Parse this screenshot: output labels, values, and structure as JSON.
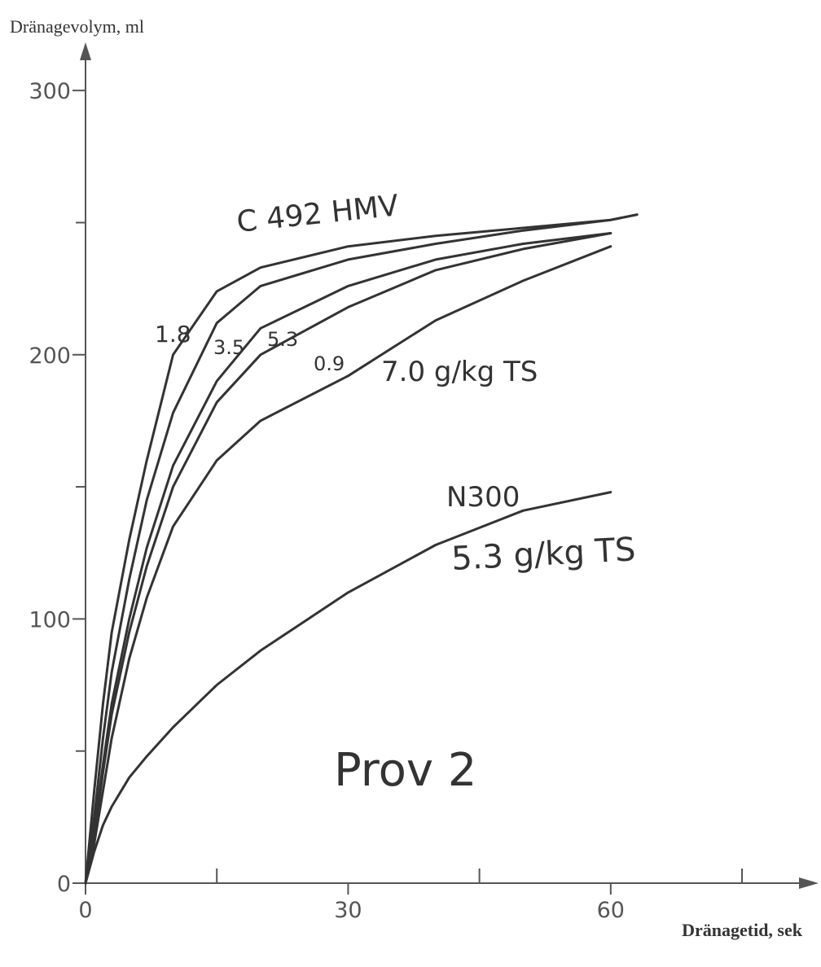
{
  "chart_data": {
    "type": "line",
    "ylabel": "Dränagevolym, ml",
    "xlabel": "Dränagetid, sek",
    "x": [
      0,
      1,
      2,
      3,
      5,
      7,
      10,
      15,
      20,
      30,
      40,
      50,
      60,
      63
    ],
    "series": [
      {
        "name": "1.8",
        "color": "#333333",
        "values": [
          0,
          35,
          68,
          95,
          130,
          160,
          200,
          224,
          233,
          241,
          245,
          248,
          251,
          253
        ]
      },
      {
        "name": "3.5",
        "color": "#333333",
        "values": [
          0,
          25,
          55,
          80,
          115,
          145,
          178,
          212,
          226,
          236,
          242,
          247,
          251,
          253
        ]
      },
      {
        "name": "5.3",
        "color": "#333333",
        "values": [
          0,
          20,
          45,
          68,
          100,
          127,
          158,
          190,
          210,
          226,
          236,
          242,
          246,
          null
        ]
      },
      {
        "name": "0.9",
        "color": "#333333",
        "values": [
          0,
          18,
          42,
          64,
          95,
          120,
          150,
          182,
          200,
          218,
          232,
          240,
          246,
          null
        ]
      },
      {
        "name": "7.0 g/kg TS",
        "color": "#333333",
        "values": [
          0,
          15,
          35,
          55,
          85,
          108,
          135,
          160,
          175,
          192,
          213,
          228,
          241,
          null
        ]
      },
      {
        "name": "N300",
        "color": "#333333",
        "values": [
          0,
          12,
          22,
          29,
          40,
          48,
          59,
          75,
          88,
          110,
          128,
          141,
          148,
          null
        ]
      }
    ],
    "annotations": [
      "C 492 HMV",
      "5.3 g/kg TS",
      "Prov 2"
    ],
    "xlim": [
      0,
      83
    ],
    "ylim": [
      0,
      317
    ],
    "xticks": [
      0,
      30,
      60
    ],
    "xminor_ticks": [
      15,
      45,
      75
    ],
    "yticks": [
      0,
      100,
      200,
      300
    ],
    "yminor_ticks": [
      50,
      150,
      250
    ]
  }
}
